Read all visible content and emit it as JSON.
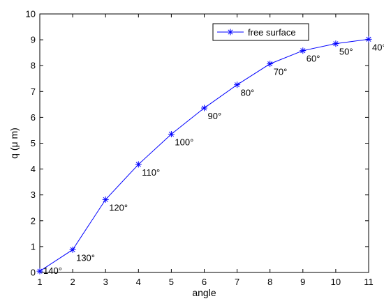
{
  "chart_data": {
    "type": "line",
    "title": "",
    "xlabel": "angle",
    "ylabel": "q (μ m)",
    "xlim": [
      1,
      11
    ],
    "ylim": [
      0,
      10
    ],
    "xticks": [
      "1",
      "2",
      "3",
      "4",
      "5",
      "6",
      "7",
      "8",
      "9",
      "10",
      "11"
    ],
    "yticks": [
      "0",
      "1",
      "2",
      "3",
      "4",
      "5",
      "6",
      "7",
      "8",
      "9",
      "10"
    ],
    "grid": false,
    "legend_position": "top-right",
    "series": [
      {
        "name": "free surface",
        "color": "#0000ff",
        "marker": "asterisk",
        "x": [
          1,
          2,
          3,
          4,
          5,
          6,
          7,
          8,
          9,
          10,
          11
        ],
        "y": [
          0.05,
          0.88,
          2.82,
          4.18,
          5.35,
          6.36,
          7.26,
          8.07,
          8.58,
          8.85,
          9.02
        ]
      }
    ],
    "annotations": [
      "140°",
      "130°",
      "120°",
      "110°",
      "100°",
      "90°",
      "80°",
      "70°",
      "60°",
      "50°",
      "40°"
    ]
  }
}
